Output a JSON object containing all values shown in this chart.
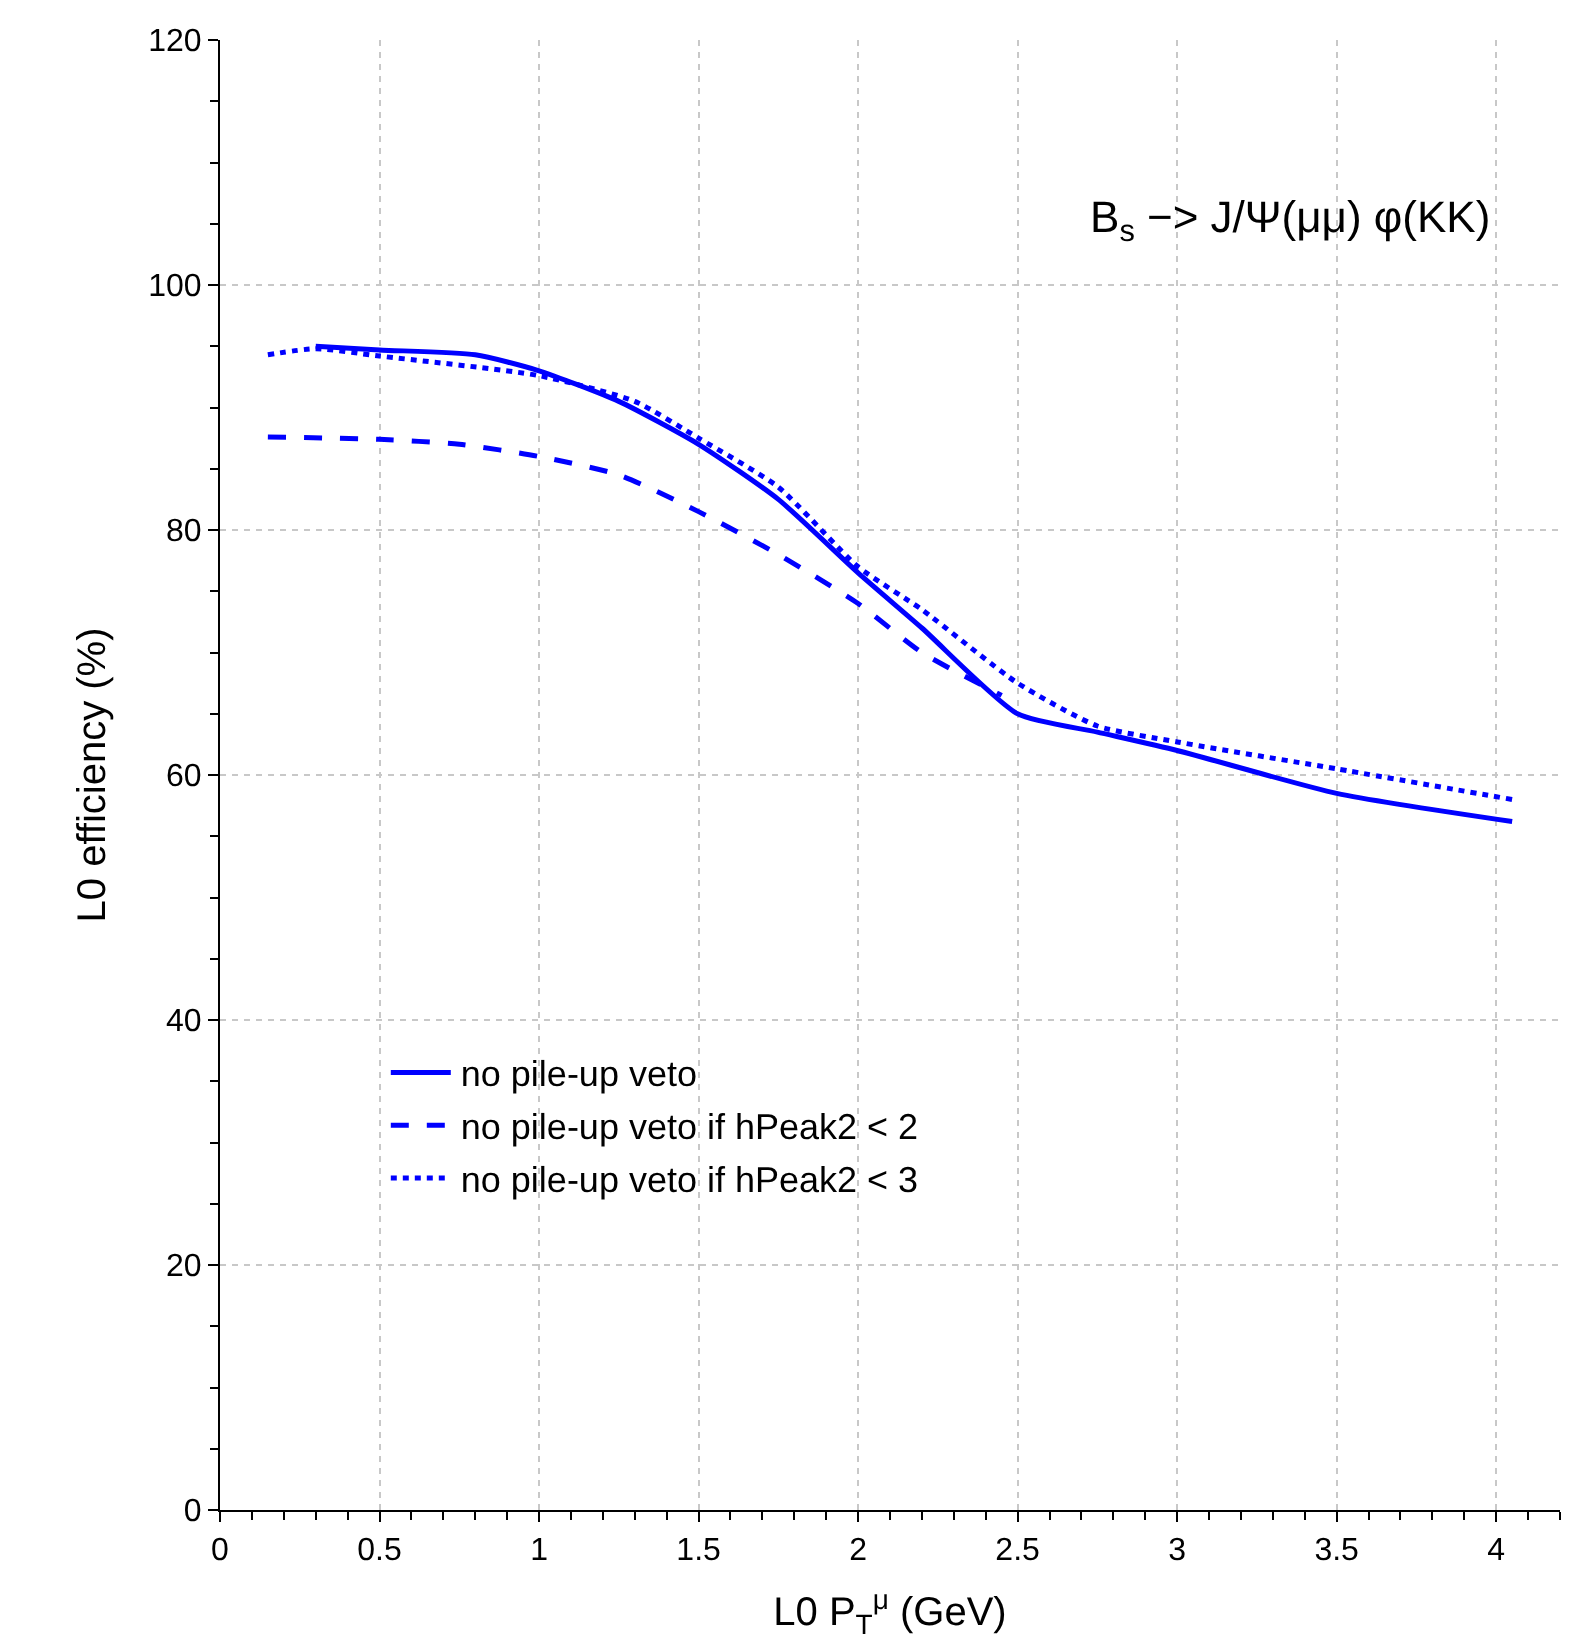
{
  "chart_data": {
    "type": "line",
    "xlabel": "L0 P$_{T}$$^{μ}$ (GeV)",
    "ylabel": "L0 efficiency (%)",
    "annotations": [
      "B$_{s}$ −> J/Ψ(μμ) φ(KK)"
    ],
    "xlim": [
      0,
      4.2
    ],
    "xticks": [
      0,
      0.5,
      1,
      1.5,
      2,
      2.5,
      3,
      3.5,
      4
    ],
    "ylim": [
      0,
      120
    ],
    "yticks": [
      0,
      20,
      40,
      60,
      80,
      100,
      120
    ],
    "grid": true,
    "legend": "bottom left",
    "marker": "none",
    "series": [
      {
        "name": "no pile-up veto",
        "color": "#0000ff",
        "line_style": "solid",
        "x": [
          0.3,
          0.5,
          0.8,
          1.0,
          1.25,
          1.5,
          1.75,
          2.0,
          2.2,
          2.5,
          2.75,
          3.0,
          3.5,
          4.05
        ],
        "values": [
          95,
          94.7,
          94.3,
          93,
          90.5,
          87,
          82.5,
          76.5,
          72,
          65,
          63.5,
          62,
          58.5,
          56.2
        ]
      },
      {
        "name": "no pile-up veto if hPeak2 < 2",
        "color": "#0000ff",
        "line_style": "dashed",
        "x": [
          0.15,
          0.5,
          0.75,
          1.0,
          1.25,
          1.5,
          1.75,
          2.0,
          2.2,
          2.45
        ],
        "values": [
          87.6,
          87.4,
          87,
          86,
          84.5,
          81.5,
          78,
          74,
          70,
          66.5
        ]
      },
      {
        "name": "no pile-up veto if hPeak2 < 3",
        "color": "#0000ff",
        "line_style": "dotted",
        "x": [
          0.15,
          0.3,
          0.5,
          1.0,
          1.3,
          1.5,
          1.75,
          2.0,
          2.2,
          2.5,
          2.75,
          3.0,
          3.5,
          4.05
        ],
        "values": [
          94.3,
          94.8,
          94.2,
          92.6,
          90.5,
          87.5,
          83.5,
          77,
          73.5,
          67.5,
          64,
          62.7,
          60.5,
          58
        ]
      }
    ]
  }
}
